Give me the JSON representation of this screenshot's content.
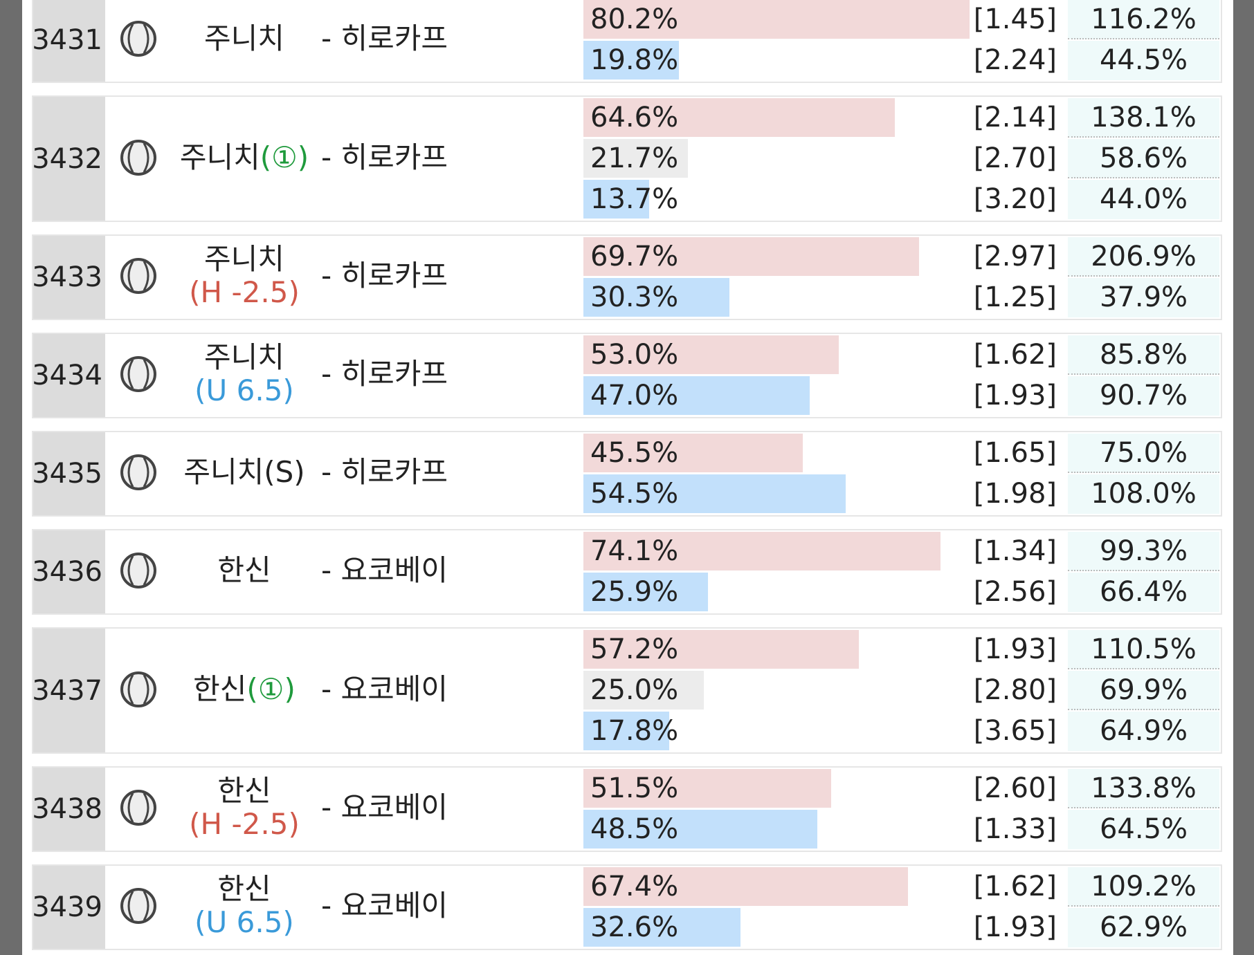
{
  "bar_colors": [
    "#f2d9d9",
    "#ececec",
    "#c2e0fb"
  ],
  "rows": [
    {
      "id": "3431",
      "home": "주니치",
      "away": "- 히로카프",
      "outcomes": [
        {
          "pct": "80.2%",
          "odds": "[1.45]",
          "ret": "116.2%"
        },
        {
          "pct": "19.8%",
          "odds": "[2.24]",
          "ret": "44.5%"
        }
      ]
    },
    {
      "id": "3432",
      "home": "주니치",
      "home_note": "(①)",
      "home_note_color": "#1f9a3c",
      "away": "- 히로카프",
      "outcomes": [
        {
          "pct": "64.6%",
          "odds": "[2.14]",
          "ret": "138.1%"
        },
        {
          "pct": "21.7%",
          "odds": "[2.70]",
          "ret": "58.6%"
        },
        {
          "pct": "13.7%",
          "odds": "[3.20]",
          "ret": "44.0%"
        }
      ]
    },
    {
      "id": "3433",
      "home": "주니치",
      "home_note": "(H -2.5)",
      "home_note_color": "#d0584a",
      "away": "- 히로카프",
      "outcomes": [
        {
          "pct": "69.7%",
          "odds": "[2.97]",
          "ret": "206.9%"
        },
        {
          "pct": "30.3%",
          "odds": "[1.25]",
          "ret": "37.9%"
        }
      ]
    },
    {
      "id": "3434",
      "home": "주니치",
      "home_note": "(U 6.5)",
      "home_note_color": "#3a9ad9",
      "away": "- 히로카프",
      "outcomes": [
        {
          "pct": "53.0%",
          "odds": "[1.62]",
          "ret": "85.8%"
        },
        {
          "pct": "47.0%",
          "odds": "[1.93]",
          "ret": "90.7%"
        }
      ]
    },
    {
      "id": "3435",
      "home": "주니치(S)",
      "away": "- 히로카프",
      "outcomes": [
        {
          "pct": "45.5%",
          "odds": "[1.65]",
          "ret": "75.0%"
        },
        {
          "pct": "54.5%",
          "odds": "[1.98]",
          "ret": "108.0%"
        }
      ]
    },
    {
      "id": "3436",
      "home": "한신",
      "away": "- 요코베이",
      "outcomes": [
        {
          "pct": "74.1%",
          "odds": "[1.34]",
          "ret": "99.3%"
        },
        {
          "pct": "25.9%",
          "odds": "[2.56]",
          "ret": "66.4%"
        }
      ]
    },
    {
      "id": "3437",
      "home": "한신",
      "home_note": "(①)",
      "home_note_color": "#1f9a3c",
      "away": "- 요코베이",
      "outcomes": [
        {
          "pct": "57.2%",
          "odds": "[1.93]",
          "ret": "110.5%"
        },
        {
          "pct": "25.0%",
          "odds": "[2.80]",
          "ret": "69.9%"
        },
        {
          "pct": "17.8%",
          "odds": "[3.65]",
          "ret": "64.9%"
        }
      ]
    },
    {
      "id": "3438",
      "home": "한신",
      "home_note": "(H -2.5)",
      "home_note_color": "#d0584a",
      "away": "- 요코베이",
      "outcomes": [
        {
          "pct": "51.5%",
          "odds": "[2.60]",
          "ret": "133.8%"
        },
        {
          "pct": "48.5%",
          "odds": "[1.33]",
          "ret": "64.5%"
        }
      ]
    },
    {
      "id": "3439",
      "home": "한신",
      "home_note": "(U 6.5)",
      "home_note_color": "#3a9ad9",
      "away": "- 요코베이",
      "outcomes": [
        {
          "pct": "67.4%",
          "odds": "[1.62]",
          "ret": "109.2%"
        },
        {
          "pct": "32.6%",
          "odds": "[1.93]",
          "ret": "62.9%"
        }
      ]
    }
  ]
}
